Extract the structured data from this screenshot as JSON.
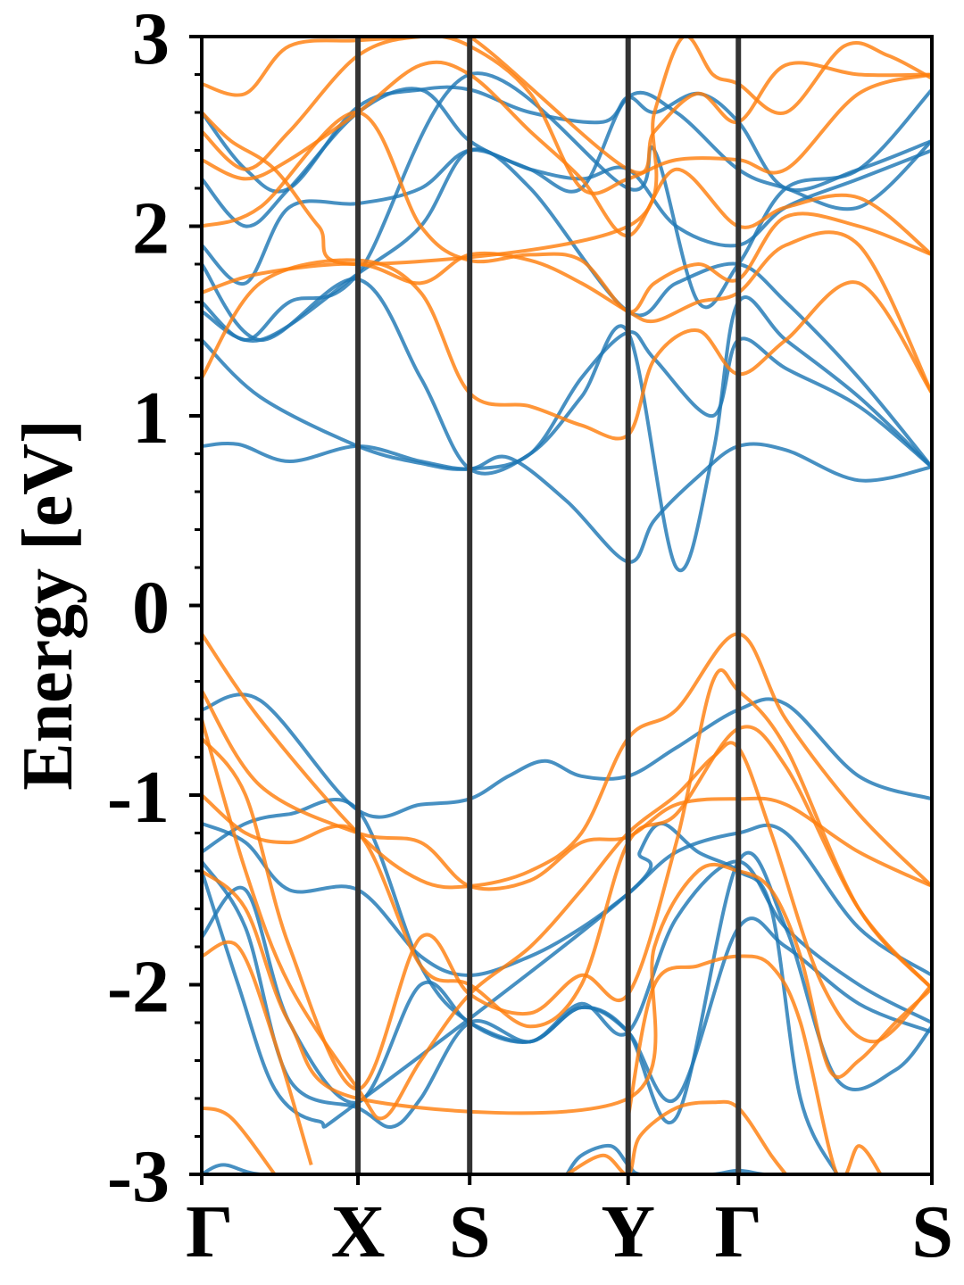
{
  "chart_data": {
    "type": "line",
    "title": "",
    "ylabel": "Energy [eV]",
    "xlabel": "",
    "ylim": [
      -3,
      3
    ],
    "yticks": [
      -3,
      -2,
      -1,
      0,
      1,
      2,
      3
    ],
    "ytick_labels": [
      "-3",
      "-2",
      "-1",
      "0",
      "1",
      "2",
      "3"
    ],
    "kpath": [
      {
        "label": "Γ",
        "x": 0.0
      },
      {
        "label": "X",
        "x": 0.214
      },
      {
        "label": "S",
        "x": 0.367
      },
      {
        "label": "Y",
        "x": 0.584
      },
      {
        "label": "Γ",
        "x": 0.735
      },
      {
        "label": "S",
        "x": 1.0
      }
    ],
    "grid": false,
    "legend": "none",
    "colors": {
      "spin_up": "#1f77b4",
      "spin_down": "#ff7f0e",
      "kline": "#333333"
    },
    "series": [
      {
        "color": "spin_up",
        "x": [
          0,
          0.05,
          0.12,
          0.214,
          0.3,
          0.367,
          0.42,
          0.5,
          0.584,
          0.62,
          0.68,
          0.735,
          0.8,
          0.9,
          1.0
        ],
        "y": [
          0.84,
          0.85,
          0.76,
          0.84,
          0.76,
          0.72,
          0.78,
          0.55,
          0.23,
          0.45,
          0.68,
          0.84,
          0.82,
          0.66,
          0.73
        ]
      },
      {
        "color": "spin_up",
        "x": [
          0,
          0.08,
          0.214,
          0.3,
          0.367,
          0.45,
          0.52,
          0.584,
          0.62,
          0.7,
          0.735,
          0.8,
          0.9,
          1.0
        ],
        "y": [
          1.4,
          1.1,
          0.84,
          0.75,
          0.72,
          0.8,
          1.2,
          1.44,
          1.3,
          1.0,
          1.4,
          1.25,
          1.05,
          0.73
        ]
      },
      {
        "color": "spin_up",
        "x": [
          0,
          0.08,
          0.214,
          0.3,
          0.367,
          0.45,
          0.52,
          0.584,
          0.65,
          0.7,
          0.735,
          0.8,
          0.9,
          1.0
        ],
        "y": [
          1.8,
          1.4,
          1.72,
          1.2,
          0.72,
          0.8,
          1.1,
          1.44,
          0.2,
          0.8,
          1.6,
          1.4,
          1.1,
          0.73
        ]
      },
      {
        "color": "spin_up",
        "x": [
          0,
          0.08,
          0.214,
          0.3,
          0.367,
          0.45,
          0.584,
          0.65,
          0.735,
          0.8,
          0.9,
          1.0
        ],
        "y": [
          1.55,
          1.4,
          1.75,
          2.0,
          2.4,
          2.2,
          1.55,
          1.7,
          1.8,
          1.6,
          1.2,
          0.73
        ]
      },
      {
        "color": "spin_up",
        "x": [
          0,
          0.06,
          0.12,
          0.214,
          0.3,
          0.367,
          0.45,
          0.52,
          0.584,
          0.65,
          0.735,
          0.8,
          0.9,
          1.0
        ],
        "y": [
          1.9,
          1.7,
          2.1,
          2.12,
          2.2,
          2.4,
          2.3,
          2.25,
          2.3,
          2.0,
          1.9,
          2.1,
          2.25,
          2.4
        ]
      },
      {
        "color": "spin_up",
        "x": [
          0,
          0.06,
          0.12,
          0.214,
          0.3,
          0.367,
          0.45,
          0.52,
          0.584,
          0.65,
          0.735,
          0.8,
          0.9,
          1.0
        ],
        "y": [
          2.25,
          2.0,
          2.2,
          2.6,
          2.72,
          2.45,
          2.3,
          2.2,
          2.68,
          2.6,
          2.3,
          2.2,
          2.1,
          2.45
        ]
      },
      {
        "color": "spin_up",
        "x": [
          0,
          0.06,
          0.12,
          0.214,
          0.3,
          0.367,
          0.45,
          0.55,
          0.584,
          0.62,
          0.68,
          0.735,
          0.8,
          0.9,
          1.0
        ],
        "y": [
          2.6,
          2.3,
          2.2,
          2.63,
          2.72,
          2.72,
          2.6,
          2.55,
          2.68,
          2.6,
          2.7,
          2.55,
          2.2,
          2.3,
          2.45
        ]
      },
      {
        "color": "spin_up",
        "x": [
          0,
          0.06,
          0.12,
          0.214,
          0.367,
          0.584,
          0.62,
          0.68,
          0.735,
          0.8,
          0.9,
          1.0
        ],
        "y": [
          1.6,
          1.4,
          1.6,
          1.75,
          2.8,
          2.2,
          2.4,
          1.6,
          1.8,
          2.2,
          2.3,
          2.72
        ]
      },
      {
        "color": "spin_up",
        "x": [
          0,
          0.08,
          0.214,
          0.3,
          0.367,
          0.42,
          0.47,
          0.52,
          0.584,
          0.65,
          0.735,
          0.8,
          0.9,
          1.0
        ],
        "y": [
          -0.55,
          -0.5,
          -1.08,
          -1.05,
          -1.02,
          -0.9,
          -0.82,
          -0.9,
          -0.9,
          -0.75,
          -0.55,
          -0.52,
          -0.9,
          -1.02
        ]
      },
      {
        "color": "spin_up",
        "x": [
          0,
          0.06,
          0.12,
          0.214,
          0.3,
          0.367,
          0.45,
          0.52,
          0.584,
          0.65,
          0.735,
          0.8,
          0.9,
          1.0
        ],
        "y": [
          -1.15,
          -1.25,
          -1.5,
          -1.5,
          -1.85,
          -1.95,
          -1.85,
          -1.7,
          -1.52,
          -1.3,
          -1.2,
          -1.2,
          -1.7,
          -1.95
        ]
      },
      {
        "color": "spin_up",
        "x": [
          0,
          0.06,
          0.12,
          0.214,
          0.3,
          0.367,
          0.45,
          0.52,
          0.584,
          0.65,
          0.735,
          0.8,
          0.9,
          1.0
        ],
        "y": [
          -1.3,
          -1.15,
          -1.1,
          -1.08,
          -1.9,
          -2.2,
          -2.3,
          -2.1,
          -2.25,
          -1.65,
          -1.35,
          -1.7,
          -2.0,
          -2.2
        ]
      },
      {
        "color": "spin_up",
        "x": [
          0,
          0.06,
          0.12,
          0.214,
          0.3,
          0.367,
          0.45,
          0.52,
          0.584,
          0.65,
          0.735,
          0.8,
          0.9,
          1.0
        ],
        "y": [
          -1.75,
          -1.5,
          -2.2,
          -2.62,
          -2.0,
          -2.2,
          -2.3,
          -2.12,
          -2.25,
          -2.6,
          -1.7,
          -1.8,
          -2.1,
          -2.25
        ]
      },
      {
        "color": "spin_up",
        "x": [
          0,
          0.06,
          0.12,
          0.214,
          0.26,
          0.3,
          0.367,
          0.45,
          0.52,
          0.584,
          0.65,
          0.735,
          0.8,
          0.87,
          0.95,
          1.0
        ],
        "y": [
          -1.35,
          -1.7,
          -2.5,
          -2.65,
          -2.75,
          -2.6,
          -2.2,
          -2.3,
          -2.12,
          -2.25,
          -2.7,
          -1.35,
          -1.7,
          -2.5,
          -2.45,
          -2.22
        ]
      },
      {
        "color": "spin_up",
        "x": [
          0,
          0.05,
          0.1,
          0.16,
          0.214,
          0.584,
          0.6,
          0.63,
          0.68,
          0.735,
          0.78,
          0.82,
          0.87
        ],
        "y": [
          -1.4,
          -2.0,
          -2.55,
          -2.72,
          -2.62,
          -1.52,
          -1.3,
          -1.15,
          -1.3,
          -1.4,
          -1.6,
          -2.6,
          -3.0
        ]
      },
      {
        "color": "spin_up",
        "x": [
          0,
          0.03,
          0.08,
          0.18
        ],
        "y": [
          -3.0,
          -2.95,
          -3.0,
          -3.0
        ]
      },
      {
        "color": "spin_up",
        "x": [
          0.5,
          0.52,
          0.56,
          0.584,
          0.6,
          0.65,
          0.7,
          0.735,
          0.77,
          0.8
        ],
        "y": [
          -3.0,
          -2.9,
          -2.85,
          -2.95,
          -3.0,
          -3.0,
          -3.0,
          -2.98,
          -3.0,
          -3.0
        ]
      },
      {
        "color": "spin_down",
        "x": [
          0,
          0.08,
          0.214,
          0.3,
          0.367,
          0.45,
          0.52,
          0.584,
          0.62,
          0.68,
          0.735,
          0.8,
          0.9,
          1.0
        ],
        "y": [
          1.2,
          1.7,
          1.82,
          1.65,
          1.12,
          1.05,
          0.95,
          0.9,
          1.3,
          1.45,
          1.22,
          1.4,
          1.7,
          1.12
        ]
      },
      {
        "color": "spin_down",
        "x": [
          0,
          0.08,
          0.214,
          0.3,
          0.367,
          0.45,
          0.52,
          0.584,
          0.62,
          0.68,
          0.735,
          0.8,
          0.9,
          1.0
        ],
        "y": [
          1.65,
          1.75,
          1.8,
          1.7,
          1.85,
          1.82,
          1.7,
          1.55,
          1.5,
          1.6,
          1.65,
          1.9,
          1.9,
          1.12
        ]
      },
      {
        "color": "spin_down",
        "x": [
          0,
          0.08,
          0.214,
          0.3,
          0.367,
          0.45,
          0.52,
          0.584,
          0.62,
          0.68,
          0.735,
          0.8,
          0.9,
          1.0
        ],
        "y": [
          2.0,
          2.1,
          2.6,
          2.0,
          1.82,
          1.85,
          1.82,
          1.55,
          1.7,
          1.8,
          1.72,
          2.05,
          2.0,
          1.85
        ]
      },
      {
        "color": "spin_down",
        "x": [
          0,
          0.06,
          0.12,
          0.214,
          0.3,
          0.367,
          0.45,
          0.52,
          0.584,
          0.65,
          0.735,
          0.8,
          0.9,
          1.0
        ],
        "y": [
          2.35,
          2.25,
          2.35,
          2.6,
          2.85,
          2.8,
          2.5,
          2.25,
          1.95,
          2.3,
          2.0,
          2.1,
          2.15,
          1.85
        ]
      },
      {
        "color": "spin_down",
        "x": [
          0,
          0.06,
          0.12,
          0.214,
          0.3,
          0.367,
          0.45,
          0.52,
          0.584,
          0.65,
          0.735,
          0.8,
          0.9,
          1.0
        ],
        "y": [
          2.5,
          2.3,
          2.5,
          2.9,
          3.0,
          2.95,
          2.7,
          2.2,
          2.25,
          2.35,
          2.35,
          2.3,
          2.7,
          2.8
        ]
      },
      {
        "color": "spin_down",
        "x": [
          0,
          0.06,
          0.12,
          0.214,
          0.3,
          0.367,
          0.584,
          0.62,
          0.68,
          0.735,
          0.8,
          0.9,
          1.0
        ],
        "y": [
          2.75,
          2.7,
          2.95,
          2.98,
          3.0,
          3.0,
          2.3,
          2.5,
          2.7,
          2.55,
          2.85,
          2.8,
          2.8
        ]
      },
      {
        "color": "spin_down",
        "x": [
          0,
          0.04,
          0.1,
          0.16,
          0.214,
          0.584,
          0.62,
          0.66,
          0.7,
          0.735,
          0.8,
          0.88,
          0.94,
          1.0
        ],
        "y": [
          2.6,
          2.45,
          2.3,
          2.0,
          1.8,
          2.0,
          2.6,
          3.0,
          2.8,
          2.75,
          2.6,
          2.95,
          2.9,
          2.78
        ]
      },
      {
        "color": "spin_down",
        "x": [
          0,
          0.08,
          0.214,
          0.3,
          0.367,
          0.45,
          0.52,
          0.584,
          0.65,
          0.735,
          0.8,
          0.9,
          1.0
        ],
        "y": [
          -0.15,
          -0.6,
          -1.2,
          -1.45,
          -1.48,
          -1.4,
          -1.2,
          -0.7,
          -0.55,
          -0.15,
          -0.6,
          -1.1,
          -1.48
        ]
      },
      {
        "color": "spin_down",
        "x": [
          0,
          0.08,
          0.214,
          0.3,
          0.367,
          0.45,
          0.52,
          0.584,
          0.65,
          0.735,
          0.8,
          0.9,
          1.0
        ],
        "y": [
          -0.45,
          -0.95,
          -1.2,
          -1.25,
          -1.48,
          -1.45,
          -1.25,
          -1.22,
          -1.05,
          -1.02,
          -1.05,
          -1.3,
          -1.48
        ]
      },
      {
        "color": "spin_down",
        "x": [
          0,
          0.06,
          0.12,
          0.214,
          0.3,
          0.367,
          0.45,
          0.52,
          0.584,
          0.65,
          0.7,
          0.735,
          0.8,
          0.9,
          1.0
        ],
        "y": [
          -0.7,
          -1.0,
          -1.8,
          -2.55,
          -1.75,
          -2.05,
          -2.15,
          -1.95,
          -2.05,
          -1.25,
          -0.4,
          -0.45,
          -0.75,
          -1.6,
          -2.02
        ]
      },
      {
        "color": "spin_down",
        "x": [
          0,
          0.06,
          0.12,
          0.214,
          0.3,
          0.367,
          0.45,
          0.52,
          0.584,
          0.65,
          0.735,
          0.8,
          0.9,
          1.0
        ],
        "y": [
          -1.0,
          -1.2,
          -1.25,
          -1.2,
          -1.9,
          -2.0,
          -2.22,
          -2.0,
          -1.25,
          -1.1,
          -0.65,
          -0.85,
          -1.6,
          -2.02
        ]
      },
      {
        "color": "spin_down",
        "x": [
          0,
          0.06,
          0.12,
          0.214,
          0.25,
          0.3,
          0.367,
          0.45,
          0.52,
          0.584,
          0.65,
          0.7,
          0.735,
          0.78,
          0.85,
          0.92,
          1.0
        ],
        "y": [
          -0.6,
          -1.4,
          -2.0,
          -2.55,
          -2.7,
          -2.4,
          -2.05,
          -1.8,
          -1.5,
          -1.2,
          -1.0,
          -0.8,
          -0.75,
          -1.2,
          -2.0,
          -2.3,
          -2.0
        ]
      },
      {
        "color": "spin_down",
        "x": [
          0,
          0.06,
          0.12,
          0.214,
          0.584,
          0.62,
          0.68,
          0.735,
          0.78,
          0.82,
          0.86,
          0.9,
          0.95,
          1.0
        ],
        "y": [
          -1.4,
          -1.6,
          -2.2,
          -2.6,
          -2.6,
          -1.8,
          -1.4,
          -1.4,
          -1.5,
          -1.85,
          -2.45,
          -2.4,
          -2.2,
          -2.02
        ]
      },
      {
        "color": "spin_down",
        "x": [
          0,
          0.05,
          0.1,
          0.15
        ],
        "y": [
          -1.85,
          -1.8,
          -2.3,
          -2.95
        ]
      },
      {
        "color": "spin_down",
        "x": [
          0.584,
          0.62,
          0.68,
          0.735,
          0.78,
          0.82,
          0.87,
          0.9,
          0.93
        ],
        "y": [
          -2.7,
          -2.0,
          -1.9,
          -1.85,
          -1.9,
          -2.2,
          -3.0,
          -2.85,
          -3.0
        ]
      },
      {
        "color": "spin_down",
        "x": [
          0,
          0.04,
          0.1
        ],
        "y": [
          -2.65,
          -2.7,
          -3.0
        ]
      },
      {
        "color": "spin_down",
        "x": [
          0.5,
          0.55,
          0.584,
          0.6,
          0.65,
          0.7,
          0.735,
          0.78,
          0.8
        ],
        "y": [
          -3.0,
          -2.9,
          -3.0,
          -2.8,
          -2.65,
          -2.62,
          -2.65,
          -2.9,
          -3.0
        ]
      }
    ]
  }
}
